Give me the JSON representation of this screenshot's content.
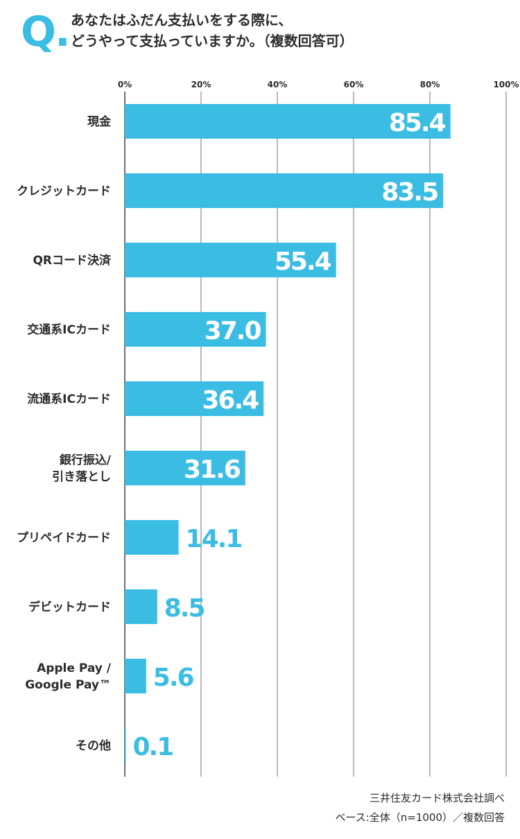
{
  "question": {
    "mark": "Q.",
    "line1": "あなたはふだん支払いをする際に、",
    "line2": "どうやって支払っていますか。（複数回答可）"
  },
  "chart_data": {
    "type": "bar",
    "orientation": "horizontal",
    "categories": [
      "現金",
      "クレジットカード",
      "QRコード決済",
      "交通系ICカード",
      "流通系ICカード",
      "銀行振込/\n引き落とし",
      "プリペイドカード",
      "デビットカード",
      "Apple Pay /\nGoogle Pay™",
      "その他"
    ],
    "values": [
      85.4,
      83.5,
      55.4,
      37.0,
      36.4,
      31.6,
      14.1,
      8.5,
      5.6,
      0.1
    ],
    "value_labels": [
      "85.4",
      "83.5",
      "55.4",
      "37.0",
      "36.4",
      "31.6",
      "14.1",
      "8.5",
      "5.6",
      "0.1"
    ],
    "xlim": [
      0,
      100
    ],
    "x_ticks": [
      0,
      20,
      40,
      60,
      80,
      100
    ],
    "x_tick_labels": [
      "0%",
      "20%",
      "40%",
      "60%",
      "80%",
      "100%"
    ],
    "grid": true,
    "bar_color": "#3bbde3",
    "label_inside_color": "#ffffff",
    "label_outside_color": "#3bbde3"
  },
  "source": {
    "line1": "三井住友カード株式会社調べ",
    "line2": "ベース:全体（n=1000）／複数回答"
  }
}
